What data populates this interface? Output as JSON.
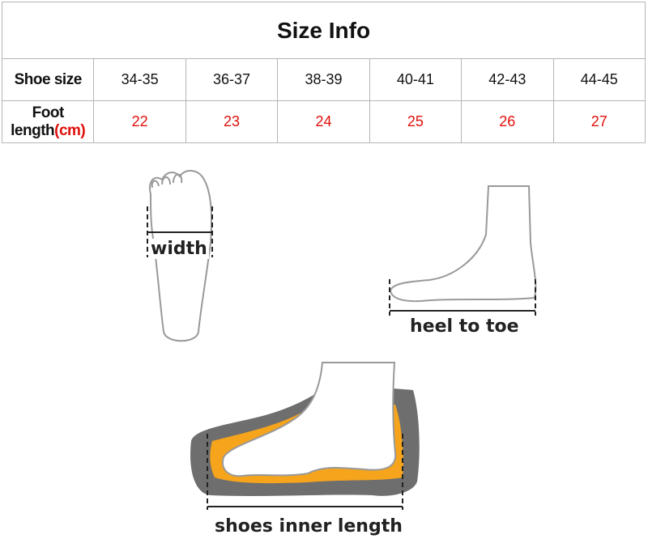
{
  "title": "Size Info",
  "rows": {
    "shoe_size": {
      "label": "Shoe size",
      "values": [
        "34-35",
        "36-37",
        "38-39",
        "40-41",
        "42-43",
        "44-45"
      ]
    },
    "foot_length": {
      "label": "Foot length",
      "unit": "(cm)",
      "values": [
        "22",
        "23",
        "24",
        "25",
        "26",
        "27"
      ]
    }
  },
  "diagram_labels": {
    "width": "width",
    "heel_to_toe": "heel to toe",
    "inner_length": "shoes inner length"
  },
  "colors": {
    "value_red": "#e0100c",
    "insole_orange": "#f5a41c",
    "sole_gray": "#6e6e6e"
  }
}
